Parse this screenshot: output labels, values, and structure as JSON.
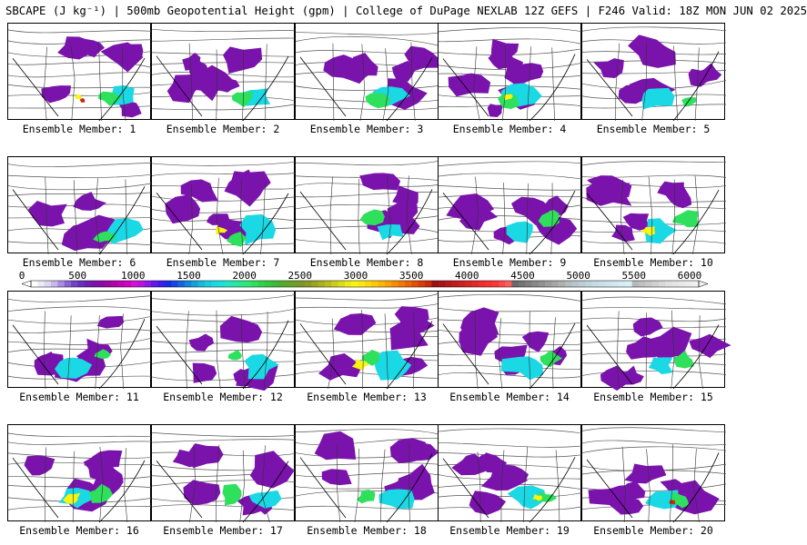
{
  "header": {
    "title": "SBCAPE (J kg⁻¹) | 500mb Geopotential Height (gpm) | College of DuPage NEXLAB 12Z GEFS | F246 Valid: 18Z MON JUN 02 2025"
  },
  "members": [
    {
      "label": "Ensemble Member: 1"
    },
    {
      "label": "Ensemble Member: 2"
    },
    {
      "label": "Ensemble Member: 3"
    },
    {
      "label": "Ensemble Member: 4"
    },
    {
      "label": "Ensemble Member: 5"
    },
    {
      "label": "Ensemble Member: 6"
    },
    {
      "label": "Ensemble Member: 7"
    },
    {
      "label": "Ensemble Member: 8"
    },
    {
      "label": "Ensemble Member: 9"
    },
    {
      "label": "Ensemble Member: 10"
    },
    {
      "label": "Ensemble Member: 11"
    },
    {
      "label": "Ensemble Member: 12"
    },
    {
      "label": "Ensemble Member: 13"
    },
    {
      "label": "Ensemble Member: 14"
    },
    {
      "label": "Ensemble Member: 15"
    },
    {
      "label": "Ensemble Member: 16"
    },
    {
      "label": "Ensemble Member: 17"
    },
    {
      "label": "Ensemble Member: 18"
    },
    {
      "label": "Ensemble Member: 19"
    },
    {
      "label": "Ensemble Member: 20"
    }
  ],
  "colorbar": {
    "ticks": [
      "0",
      "500",
      "1000",
      "1500",
      "2000",
      "2500",
      "3000",
      "3500",
      "4000",
      "4500",
      "5000",
      "5500",
      "6000"
    ],
    "range": [
      0,
      6000
    ],
    "step": 100,
    "colors": [
      "#ffffff",
      "#ede9f7",
      "#e0d6f3",
      "#c9b8ec",
      "#a98ee0",
      "#8b64d4",
      "#7244c8",
      "#6a2ec0",
      "#6e1fb4",
      "#7a13ac",
      "#8a0aa8",
      "#9e05a6",
      "#b104ac",
      "#c204b7",
      "#d003c6",
      "#d60fd6",
      "#b912e0",
      "#8e16e6",
      "#6419ea",
      "#3e1ced",
      "#1a2be8",
      "#1447e4",
      "#1265e0",
      "#1385dc",
      "#14a0dc",
      "#16b8dc",
      "#18cce0",
      "#1ad8e4",
      "#1ce0dc",
      "#20e6c4",
      "#24e8a8",
      "#28e88c",
      "#2ce874",
      "#2ee05c",
      "#30d44a",
      "#34c83c",
      "#3cbc34",
      "#4cb02e",
      "#5ca82a",
      "#6ca026",
      "#7c9824",
      "#8c9822",
      "#9ca420",
      "#acb01e",
      "#bcbc1c",
      "#cccc1a",
      "#dcdc18",
      "#ecec14",
      "#f8f410",
      "#fce80c",
      "#fcd80a",
      "#fcc808",
      "#fcb406",
      "#fca004",
      "#f88c04",
      "#f47804",
      "#ec6404",
      "#e45004",
      "#d83c04",
      "#cc2804",
      "#9c1010",
      "#a81414",
      "#b41818",
      "#c01c1c",
      "#cc2020",
      "#d82424",
      "#e42828",
      "#f02c2c",
      "#f83030",
      "#ff3434",
      "#ff4848",
      "#ff5c5c",
      "#6a6a6a",
      "#747474",
      "#7e7e7e",
      "#888888",
      "#929292",
      "#9c9c9c",
      "#a6a6a6",
      "#b0b0b0",
      "#b4bcc4",
      "#b8c4cc",
      "#bcccd4",
      "#c0d4dc",
      "#c4dce4",
      "#c8e0e8",
      "#cce4ec",
      "#d0e8f0",
      "#d4ecf4",
      "#d8f0f8",
      "#b8b8b8",
      "#c0c0c0",
      "#c8c8c8",
      "#d0d0d0",
      "#d8d8d8",
      "#e0e0e0",
      "#e4e4e4",
      "#e8e8e8",
      "#ececec",
      "#f0f0f0"
    ]
  },
  "colors": {
    "low": "#7a13ac",
    "mid": "#1ad8e4",
    "high": "#2ee05c",
    "peak": "#f8f410",
    "extreme": "#cc2804",
    "contour": "#555555",
    "border": "#333333"
  }
}
